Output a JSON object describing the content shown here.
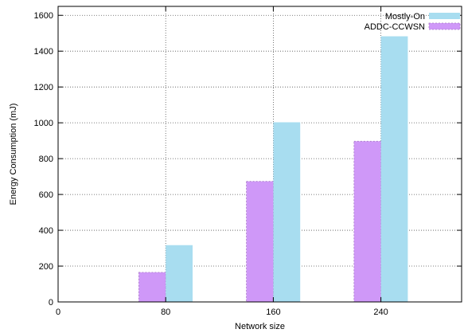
{
  "chart_data": {
    "type": "bar",
    "title": "",
    "xlabel": "Network size",
    "ylabel": "Energy Consumption (mJ)",
    "categories": [
      "80",
      "160",
      "240"
    ],
    "x_values": [
      80,
      160,
      240
    ],
    "x_ticks": [
      "0",
      "80",
      "160",
      "240"
    ],
    "xlim": [
      0,
      300
    ],
    "ylim": [
      0,
      1650
    ],
    "y_ticks": [
      0,
      200,
      400,
      600,
      800,
      1000,
      1200,
      1400,
      1600
    ],
    "grid": true,
    "legend_position": "top-right",
    "series": [
      {
        "name": "ADDC-CCWSN",
        "values": [
          165,
          673,
          897
        ],
        "color": "#cf98f8"
      },
      {
        "name": "Mostly-On",
        "values": [
          317,
          1003,
          1483
        ],
        "color": "#a8ddf0"
      }
    ],
    "legend_order": [
      1,
      0
    ]
  }
}
